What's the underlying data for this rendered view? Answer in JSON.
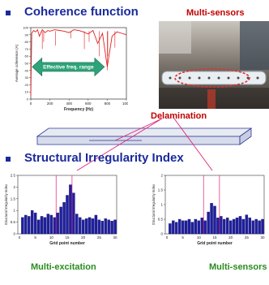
{
  "sections": {
    "coherence_title": "Coherence function",
    "sri_title": "Structural Irregularity Index"
  },
  "labels": {
    "multi_sensors_photo": "Multi-sensors",
    "delamination": "Delamination",
    "multi_excitation": "Multi-excitation",
    "multi_sensors_bottom": "Multi-sensors",
    "effective_freq_range": "Effective freq. range"
  },
  "colors": {
    "title": "#1a2a9c",
    "red_label": "#c00000",
    "green_label": "#2a8c1e",
    "bar": "#1f1fa0",
    "coherence_line": "#e02020",
    "arrow_fill": "#2ea37a"
  },
  "chart_data": [
    {
      "type": "line",
      "xlabel": "Frequency (Hz)",
      "ylabel": "Average coherence (A)",
      "xlim": [
        0,
        1000
      ],
      "ylim": [
        0,
        100
      ],
      "x_ticks": [
        "0",
        "200",
        "400",
        "600",
        "800",
        "1000"
      ],
      "y_ticks": [
        "0",
        "10",
        "20",
        "30",
        "40",
        "50",
        "60",
        "70",
        "80",
        "90",
        "100"
      ],
      "annotation": "Effective freq. range",
      "series": [
        {
          "x": [
            0,
            10,
            30,
            50,
            70,
            90,
            120,
            150,
            180,
            200,
            250,
            300,
            350,
            400,
            450,
            500,
            550,
            600,
            650,
            700,
            750,
            800,
            850,
            900,
            950,
            1000
          ],
          "y": [
            5,
            92,
            96,
            94,
            97,
            88,
            97,
            93,
            96,
            95,
            97,
            96,
            95,
            93,
            97,
            96,
            94,
            91,
            96,
            78,
            92,
            45,
            88,
            94,
            92,
            90
          ]
        }
      ]
    },
    {
      "type": "bar",
      "xlabel": "Grid point number",
      "ylabel": "Structural Irregularity Index",
      "ylim": [
        0,
        2.5
      ],
      "x_ticks": [
        "0",
        "5",
        "10",
        "15",
        "20",
        "25",
        "30"
      ],
      "y_ticks": [
        "0",
        "0.5",
        "1",
        "1.5",
        "2",
        "2.5"
      ],
      "categories": [
        1,
        2,
        3,
        4,
        5,
        6,
        7,
        8,
        9,
        10,
        11,
        12,
        13,
        14,
        15,
        16,
        17,
        18,
        19,
        20,
        21,
        22,
        23,
        24,
        25,
        26,
        27,
        28,
        29,
        30
      ],
      "values": [
        0.7,
        0.8,
        0.75,
        1.0,
        0.9,
        0.6,
        0.75,
        0.7,
        0.85,
        0.8,
        0.7,
        0.9,
        1.15,
        1.35,
        1.65,
        2.1,
        1.75,
        0.85,
        0.7,
        0.6,
        0.65,
        0.7,
        0.65,
        0.8,
        0.6,
        0.55,
        0.65,
        0.6,
        0.55,
        0.6
      ]
    },
    {
      "type": "bar",
      "xlabel": "Grid point number",
      "ylabel": "Structural Irregularity Index",
      "ylim": [
        0,
        2
      ],
      "x_ticks": [
        "0",
        "5",
        "10",
        "15",
        "20",
        "25",
        "30"
      ],
      "y_ticks": [
        "0",
        "0.5",
        "1",
        "1.5",
        "2"
      ],
      "categories": [
        1,
        2,
        3,
        4,
        5,
        6,
        7,
        8,
        9,
        10,
        11,
        12,
        13,
        14,
        15,
        16,
        17,
        18,
        19,
        20,
        21,
        22,
        23,
        24,
        25,
        26,
        27,
        28,
        29,
        30
      ],
      "values": [
        0.35,
        0.45,
        0.4,
        0.5,
        0.45,
        0.45,
        0.5,
        0.4,
        0.5,
        0.45,
        0.55,
        0.45,
        0.75,
        1.05,
        0.95,
        0.55,
        0.6,
        0.5,
        0.55,
        0.45,
        0.5,
        0.55,
        0.6,
        0.5,
        0.65,
        0.55,
        0.45,
        0.5,
        0.45,
        0.5
      ]
    }
  ]
}
